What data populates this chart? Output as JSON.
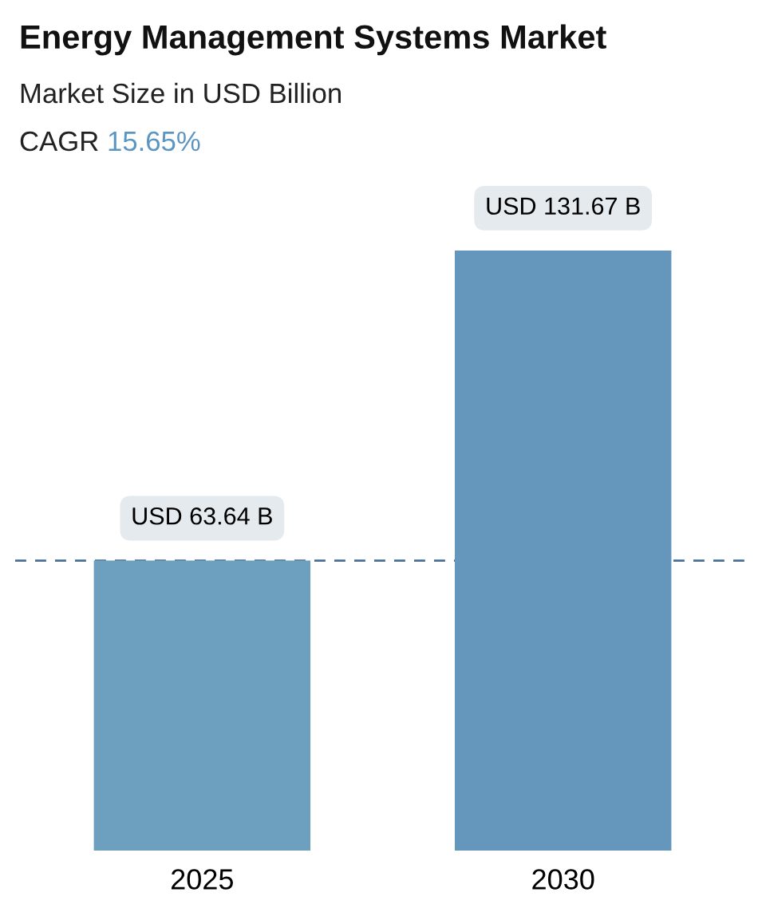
{
  "chart_data": {
    "type": "bar",
    "title": "Energy Management Systems Market",
    "subtitle": "Market Size in USD Billion",
    "annotations": [
      "CAGR 15.65%"
    ],
    "categories": [
      "2025",
      "2030"
    ],
    "values": [
      63.64,
      131.67
    ],
    "value_labels": [
      "USD 63.64 B",
      "USD 131.67 B"
    ],
    "colors": [
      "#6d9fbf",
      "#6596bb"
    ],
    "ref_lines": [
      {
        "axis": "y",
        "value": 63.64,
        "color": "#4a6f96",
        "line_style": "dashed"
      }
    ],
    "grid": false,
    "legend": false
  }
}
